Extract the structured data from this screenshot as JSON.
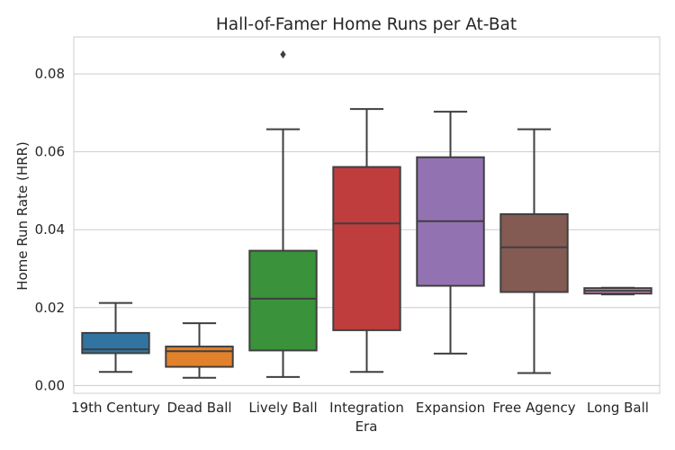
{
  "chart_data": {
    "type": "box",
    "title": "Hall-of-Famer Home Runs per At-Bat",
    "xlabel": "Era",
    "ylabel": "Home Run Rate (HRR)",
    "ylim": [
      -0.002,
      0.0895
    ],
    "yticks": [
      0.0,
      0.02,
      0.04,
      0.06,
      0.08
    ],
    "ytick_labels": [
      "0.00",
      "0.02",
      "0.04",
      "0.06",
      "0.08"
    ],
    "grid": true,
    "categories": [
      "19th Century",
      "Dead Ball",
      "Lively Ball",
      "Integration",
      "Expansion",
      "Free Agency",
      "Long Ball"
    ],
    "boxes": [
      {
        "category": "19th Century",
        "color": "#3274a1",
        "whisker_low": 0.0035,
        "q1": 0.0083,
        "median": 0.0093,
        "q3": 0.0135,
        "whisker_high": 0.0212,
        "outliers": []
      },
      {
        "category": "Dead Ball",
        "color": "#e1812c",
        "whisker_low": 0.002,
        "q1": 0.0048,
        "median": 0.0088,
        "q3": 0.01,
        "whisker_high": 0.016,
        "outliers": []
      },
      {
        "category": "Lively Ball",
        "color": "#3a923a",
        "whisker_low": 0.0022,
        "q1": 0.009,
        "median": 0.0223,
        "q3": 0.0346,
        "whisker_high": 0.0658,
        "outliers": [
          0.085
        ]
      },
      {
        "category": "Integration",
        "color": "#c03d3e",
        "whisker_low": 0.0035,
        "q1": 0.0142,
        "median": 0.0416,
        "q3": 0.0561,
        "whisker_high": 0.071,
        "outliers": []
      },
      {
        "category": "Expansion",
        "color": "#9372b2",
        "whisker_low": 0.0082,
        "q1": 0.0256,
        "median": 0.0422,
        "q3": 0.0586,
        "whisker_high": 0.0703,
        "outliers": []
      },
      {
        "category": "Free Agency",
        "color": "#845b53",
        "whisker_low": 0.0032,
        "q1": 0.024,
        "median": 0.0355,
        "q3": 0.044,
        "whisker_high": 0.0658,
        "outliers": []
      },
      {
        "category": "Long Ball",
        "color": "#d684bd",
        "whisker_low": 0.0234,
        "q1": 0.0236,
        "median": 0.0243,
        "q3": 0.025,
        "whisker_high": 0.0251,
        "outliers": []
      }
    ]
  }
}
